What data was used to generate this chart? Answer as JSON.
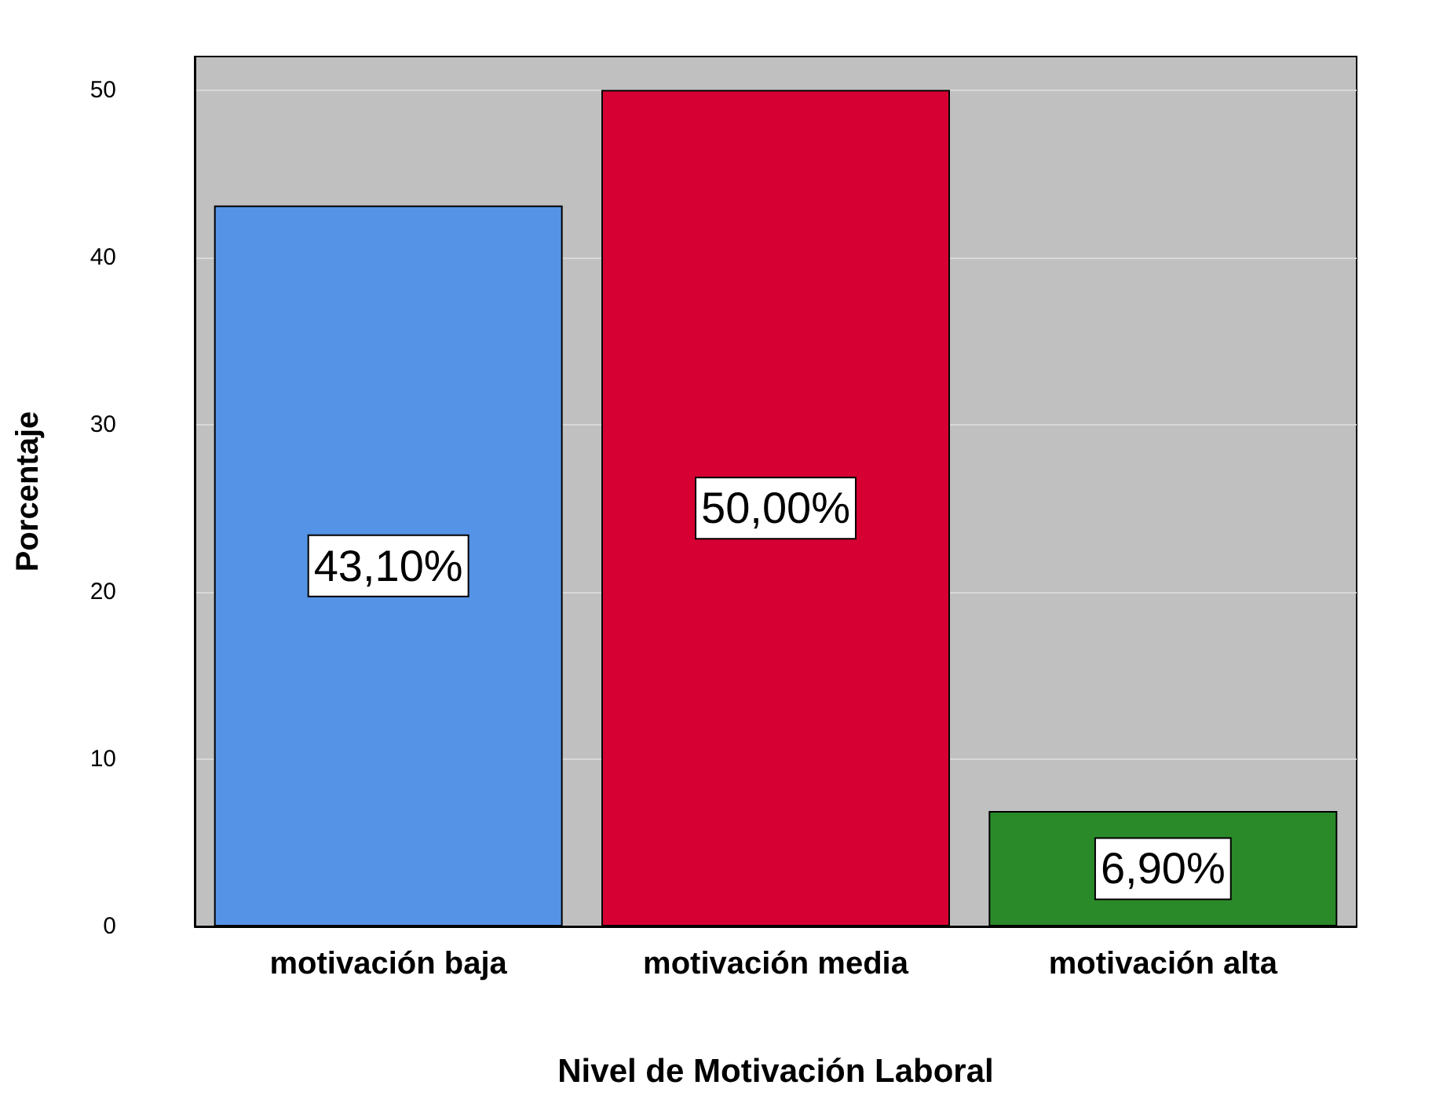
{
  "chart_data": {
    "type": "bar",
    "xlabel": "Nivel de Motivación Laboral",
    "ylabel": "Porcentaje",
    "categories": [
      "motivación baja",
      "motivación media",
      "motivación alta"
    ],
    "values": [
      43.1,
      50.0,
      6.9
    ],
    "colors": [
      "#5593e6",
      "#d70032",
      "#2a8a2a"
    ],
    "value_labels": [
      "43,10%",
      "50,00%",
      "6,90%"
    ],
    "ylim": [
      0,
      52
    ],
    "yticks": [
      0,
      10,
      20,
      30,
      40,
      50
    ],
    "grid": "y"
  }
}
